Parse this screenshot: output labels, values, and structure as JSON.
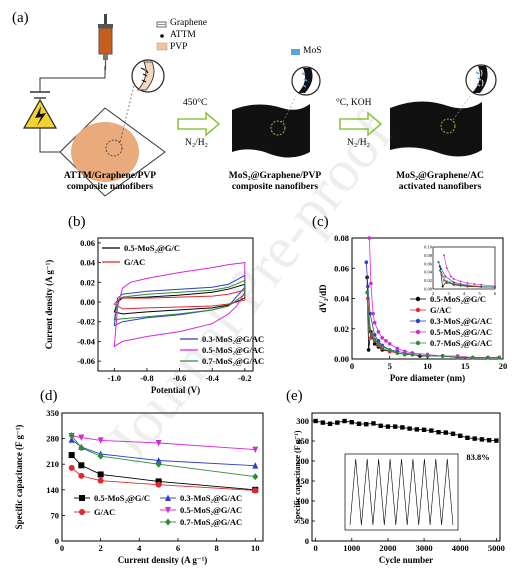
{
  "schematic": {
    "panel_label": "(a)",
    "legend": {
      "graphene": "Graphene",
      "attm": "ATTM",
      "pvp": "PVP",
      "mos2": "MoS"
    },
    "step1": {
      "temp": "450°C",
      "gas": "N₂/H₂"
    },
    "step2": {
      "temp": "°C,  KOH",
      "gas": "N₂/H₂"
    },
    "stage1": {
      "line1": "ATTM/Graphene/PVP",
      "line2": "composite nanofibers"
    },
    "stage2": {
      "line1": "MoS₂@Graphene/PVP",
      "line2": "composite nanofibers"
    },
    "stage3": {
      "line1": "MoS₂@Graphene/AC",
      "line2": "activated nanofibers"
    }
  },
  "watermark": "Journal Pre-proof",
  "chart_data": [
    {
      "id": "b",
      "panel_label": "(b)",
      "type": "line",
      "xlabel": "Potential (V)",
      "ylabel": "Current density (A g⁻¹)",
      "xlim": [
        -1.1,
        -0.15
      ],
      "ylim": [
        -0.07,
        0.065
      ],
      "xticks": [
        -1.0,
        -0.8,
        -0.6,
        -0.4,
        -0.2
      ],
      "xtick_labels": [
        "-1.0",
        "-0.8",
        "-0.6",
        "-0.4",
        "-0.2"
      ],
      "yticks": [
        -0.06,
        -0.04,
        -0.02,
        0.0,
        0.02,
        0.04,
        0.06
      ],
      "ytick_labels": [
        "-0.06",
        "-0.04",
        "-0.02",
        "0.00",
        "0.02",
        "0.04",
        "0.06"
      ],
      "legend_top": [
        "0.5-MoS₂@G/C",
        "G/AC"
      ],
      "legend_bottom": [
        "0.3-MoS₂@G/AC",
        "0.5-MoS₂@G/AC",
        "0.7-MoS₂@G/AC"
      ],
      "series": [
        {
          "name": "0.5-MoS₂@G/C",
          "color": "#000000",
          "width": 1.0,
          "upper": [
            [
              -1.0,
              -0.01
            ],
            [
              -0.98,
              0.0
            ],
            [
              -0.95,
              0.004
            ],
            [
              -0.8,
              0.005
            ],
            [
              -0.6,
              0.007
            ],
            [
              -0.4,
              0.01
            ],
            [
              -0.3,
              0.013
            ],
            [
              -0.2,
              0.018
            ]
          ],
          "lower": [
            [
              -0.2,
              0.004
            ],
            [
              -0.3,
              -0.003
            ],
            [
              -0.4,
              -0.006
            ],
            [
              -0.6,
              -0.008
            ],
            [
              -0.8,
              -0.01
            ],
            [
              -0.95,
              -0.012
            ],
            [
              -1.0,
              -0.01
            ]
          ]
        },
        {
          "name": "G/AC",
          "color": "#e0282e",
          "width": 1.0,
          "upper": [
            [
              -1.0,
              -0.002
            ],
            [
              -0.97,
              0.003
            ],
            [
              -0.95,
              0.004
            ],
            [
              -0.8,
              0.004
            ],
            [
              -0.6,
              0.005
            ],
            [
              -0.4,
              0.006
            ],
            [
              -0.3,
              0.008
            ],
            [
              -0.2,
              0.012
            ]
          ],
          "lower": [
            [
              -0.2,
              0.002
            ],
            [
              -0.3,
              -0.002
            ],
            [
              -0.4,
              -0.004
            ],
            [
              -0.6,
              -0.005
            ],
            [
              -0.8,
              -0.006
            ],
            [
              -0.95,
              -0.007
            ],
            [
              -1.0,
              -0.002
            ]
          ]
        },
        {
          "name": "0.3-MoS₂@G/AC",
          "color": "#2d3fc9",
          "width": 1.0,
          "upper": [
            [
              -1.0,
              -0.024
            ],
            [
              -0.98,
              0.004
            ],
            [
              -0.95,
              0.008
            ],
            [
              -0.8,
              0.011
            ],
            [
              -0.6,
              0.013
            ],
            [
              -0.4,
              0.015
            ],
            [
              -0.3,
              0.018
            ],
            [
              -0.2,
              0.027
            ]
          ],
          "lower": [
            [
              -0.2,
              0.015
            ],
            [
              -0.3,
              -0.004
            ],
            [
              -0.4,
              -0.008
            ],
            [
              -0.6,
              -0.013
            ],
            [
              -0.8,
              -0.016
            ],
            [
              -0.95,
              -0.02
            ],
            [
              -1.0,
              -0.024
            ]
          ]
        },
        {
          "name": "0.5-MoS₂@G/AC",
          "color": "#d42ad4",
          "width": 1.0,
          "upper": [
            [
              -1.0,
              -0.045
            ],
            [
              -0.98,
              -0.005
            ],
            [
              -0.95,
              0.014
            ],
            [
              -0.9,
              0.02
            ],
            [
              -0.8,
              0.024
            ],
            [
              -0.6,
              0.03
            ],
            [
              -0.4,
              0.035
            ],
            [
              -0.3,
              0.038
            ],
            [
              -0.2,
              0.04
            ]
          ],
          "lower": [
            [
              -0.2,
              0.01
            ],
            [
              -0.25,
              -0.004
            ],
            [
              -0.3,
              -0.012
            ],
            [
              -0.4,
              -0.022
            ],
            [
              -0.6,
              -0.03
            ],
            [
              -0.8,
              -0.035
            ],
            [
              -0.95,
              -0.04
            ],
            [
              -1.0,
              -0.045
            ]
          ]
        },
        {
          "name": "0.7-MoS₂@G/AC",
          "color": "#2f8a3a",
          "width": 1.0,
          "upper": [
            [
              -1.0,
              -0.018
            ],
            [
              -0.98,
              0.002
            ],
            [
              -0.95,
              0.005
            ],
            [
              -0.8,
              0.008
            ],
            [
              -0.6,
              0.01
            ],
            [
              -0.4,
              0.012
            ],
            [
              -0.3,
              0.015
            ],
            [
              -0.2,
              0.022
            ]
          ],
          "lower": [
            [
              -0.2,
              0.008
            ],
            [
              -0.3,
              -0.004
            ],
            [
              -0.4,
              -0.008
            ],
            [
              -0.6,
              -0.012
            ],
            [
              -0.8,
              -0.015
            ],
            [
              -0.95,
              -0.017
            ],
            [
              -1.0,
              -0.018
            ]
          ]
        }
      ]
    },
    {
      "id": "c",
      "panel_label": "(c)",
      "type": "scatter",
      "xlabel": "Pore diameter (nm)",
      "ylabel": "dV₂/dD",
      "xlim": [
        0,
        20
      ],
      "ylim": [
        0,
        0.08
      ],
      "xticks": [
        0,
        5,
        10,
        15,
        20
      ],
      "xtick_labels": [
        "0",
        "5",
        "10",
        "15",
        "20"
      ],
      "yticks": [
        0.0,
        0.02,
        0.04,
        0.06,
        0.08
      ],
      "ytick_labels": [
        "0.00",
        "0.02",
        "0.04",
        "0.06",
        "0.08"
      ],
      "legend": [
        "0.5-MoS₂@G/C",
        "G/AC",
        "0.3-MoS₂@G/AC",
        "0.5-MoS₂@G/AC",
        "0.7-MoS₂@G/AC"
      ],
      "inset": {
        "xlim": [
          1.5,
          6
        ],
        "ylim": [
          0,
          0.1
        ],
        "xtick_labels": [
          "2",
          "3",
          "4",
          "5",
          "6"
        ],
        "ytick_labels": [
          "0.00",
          "0.02",
          "0.04",
          "0.06",
          "0.08",
          "0.10"
        ]
      },
      "series": [
        {
          "name": "0.5-MoS₂@G/C",
          "color": "#000000",
          "points": [
            [
              2.0,
              0.054
            ],
            [
              2.2,
              0.006
            ],
            [
              2.5,
              0.018
            ],
            [
              3.0,
              0.01
            ],
            [
              3.5,
              0.008
            ],
            [
              4,
              0.006
            ],
            [
              5,
              0.005
            ],
            [
              6,
              0.004
            ],
            [
              7,
              0.003
            ],
            [
              8,
              0.003
            ],
            [
              9,
              0.002
            ],
            [
              10,
              0.002
            ],
            [
              12,
              0.002
            ],
            [
              14,
              0.001
            ],
            [
              16,
              0.001
            ],
            [
              18,
              0.001
            ],
            [
              19.5,
              0.001
            ]
          ]
        },
        {
          "name": "G/AC",
          "color": "#e0282e",
          "points": [
            [
              2.1,
              0.04
            ],
            [
              2.5,
              0.014
            ],
            [
              3.0,
              0.012
            ],
            [
              3.5,
              0.009
            ],
            [
              4,
              0.007
            ],
            [
              5,
              0.005
            ],
            [
              6,
              0.004
            ],
            [
              7,
              0.003
            ],
            [
              8,
              0.003
            ],
            [
              10,
              0.002
            ],
            [
              12,
              0.002
            ],
            [
              14,
              0.001
            ],
            [
              16,
              0.001
            ],
            [
              18,
              0.001
            ],
            [
              19.5,
              0.001
            ]
          ]
        },
        {
          "name": "0.3-MoS₂@G/AC",
          "color": "#2d3fc9",
          "points": [
            [
              1.9,
              0.064
            ],
            [
              2.1,
              0.048
            ],
            [
              2.4,
              0.03
            ],
            [
              3.0,
              0.016
            ],
            [
              3.5,
              0.012
            ],
            [
              4,
              0.009
            ],
            [
              5,
              0.006
            ],
            [
              6,
              0.005
            ],
            [
              7,
              0.004
            ],
            [
              8,
              0.003
            ],
            [
              10,
              0.002
            ],
            [
              12,
              0.002
            ],
            [
              14,
              0.001
            ],
            [
              16,
              0.001
            ],
            [
              18,
              0.001
            ],
            [
              19.5,
              0.001
            ]
          ]
        },
        {
          "name": "0.5-MoS₂@G/AC",
          "color": "#d42ad4",
          "points": [
            [
              2.3,
              0.08
            ],
            [
              2.5,
              0.05
            ],
            [
              2.8,
              0.03
            ],
            [
              3.0,
              0.024
            ],
            [
              3.5,
              0.018
            ],
            [
              4,
              0.014
            ],
            [
              4.5,
              0.012
            ],
            [
              5,
              0.01
            ],
            [
              6,
              0.007
            ],
            [
              7,
              0.005
            ],
            [
              8,
              0.004
            ],
            [
              10,
              0.003
            ],
            [
              12,
              0.002
            ],
            [
              14,
              0.002
            ],
            [
              16,
              0.001
            ],
            [
              18,
              0.001
            ],
            [
              19.5,
              0.001
            ]
          ]
        },
        {
          "name": "0.7-MoS₂@G/AC",
          "color": "#2f8a3a",
          "points": [
            [
              2.0,
              0.044
            ],
            [
              2.3,
              0.02
            ],
            [
              2.7,
              0.016
            ],
            [
              3.0,
              0.013
            ],
            [
              3.5,
              0.01
            ],
            [
              4,
              0.008
            ],
            [
              5,
              0.006
            ],
            [
              6,
              0.004
            ],
            [
              7,
              0.003
            ],
            [
              8,
              0.003
            ],
            [
              10,
              0.002
            ],
            [
              12,
              0.002
            ],
            [
              14,
              0.001
            ],
            [
              16,
              0.001
            ],
            [
              18,
              0.001
            ],
            [
              19.5,
              0.001
            ]
          ]
        }
      ]
    },
    {
      "id": "d",
      "panel_label": "(d)",
      "type": "line",
      "xlabel": "Current density (A g⁻¹)",
      "ylabel": "Specific capacitance (F g⁻¹)",
      "xlim": [
        0,
        10.4
      ],
      "ylim": [
        0,
        350
      ],
      "xticks": [
        0,
        2,
        4,
        6,
        8,
        10
      ],
      "xtick_labels": [
        "0",
        "2",
        "4",
        "6",
        "8",
        "10"
      ],
      "yticks": [
        0,
        70,
        140,
        210,
        280,
        350
      ],
      "ytick_labels": [
        "0",
        "70",
        "140",
        "210",
        "280",
        "350"
      ],
      "legend": [
        "0.5-MoS₂@G/C",
        "G/AC",
        "0.3-MoS₂@G/AC",
        "0.5-MoS₂@G/AC",
        "0.7-MoS₂@G/AC"
      ],
      "series": [
        {
          "name": "0.5-MoS₂@G/C",
          "color": "#000000",
          "marker": "square",
          "x": [
            0.5,
            1,
            2,
            5,
            10
          ],
          "y": [
            235,
            207,
            182,
            163,
            140
          ]
        },
        {
          "name": "G/AC",
          "color": "#e0282e",
          "marker": "circle",
          "x": [
            0.5,
            1,
            2,
            5,
            10
          ],
          "y": [
            200,
            178,
            165,
            154,
            138
          ]
        },
        {
          "name": "0.3-MoS₂@G/AC",
          "color": "#2d3fc9",
          "marker": "triangle",
          "x": [
            0.5,
            1,
            2,
            5,
            10
          ],
          "y": [
            277,
            257,
            238,
            220,
            206
          ]
        },
        {
          "name": "0.5-MoS₂@G/AC",
          "color": "#d42ad4",
          "marker": "down-triangle",
          "x": [
            0.5,
            1,
            2,
            5,
            10
          ],
          "y": [
            287,
            283,
            275,
            268,
            250
          ]
        },
        {
          "name": "0.7-MoS₂@G/AC",
          "color": "#2f8a3a",
          "marker": "diamond",
          "x": [
            0.5,
            1,
            2,
            5,
            10
          ],
          "y": [
            288,
            255,
            232,
            210,
            176
          ]
        }
      ]
    },
    {
      "id": "e",
      "panel_label": "(e)",
      "type": "scatter",
      "xlabel": "Cycle number",
      "ylabel": "Specific capacitance (F g⁻¹)",
      "xlim": [
        -100,
        5100
      ],
      "ylim": [
        0,
        320
      ],
      "xticks": [
        0,
        1000,
        2000,
        3000,
        4000,
        5000
      ],
      "xtick_labels": [
        "0",
        "1000",
        "2000",
        "3000",
        "4000",
        "5000"
      ],
      "yticks": [
        0,
        50,
        100,
        150,
        200,
        250,
        300
      ],
      "ytick_labels": [
        "0",
        "50",
        "100",
        "150",
        "200",
        "250",
        "300"
      ],
      "annotation": "83.8%",
      "series": [
        {
          "name": "",
          "color": "#000000",
          "x": [
            0,
            200,
            400,
            600,
            800,
            1000,
            1200,
            1400,
            1600,
            1800,
            2000,
            2200,
            2400,
            2600,
            2800,
            3000,
            3200,
            3400,
            3600,
            3800,
            4000,
            4200,
            4400,
            4600,
            4800,
            5000
          ],
          "y": [
            300,
            296,
            293,
            296,
            300,
            297,
            293,
            292,
            294,
            288,
            286,
            286,
            284,
            281,
            279,
            278,
            276,
            272,
            271,
            268,
            263,
            258,
            256,
            254,
            252,
            251
          ]
        }
      ],
      "inset_cycles": 9
    }
  ]
}
